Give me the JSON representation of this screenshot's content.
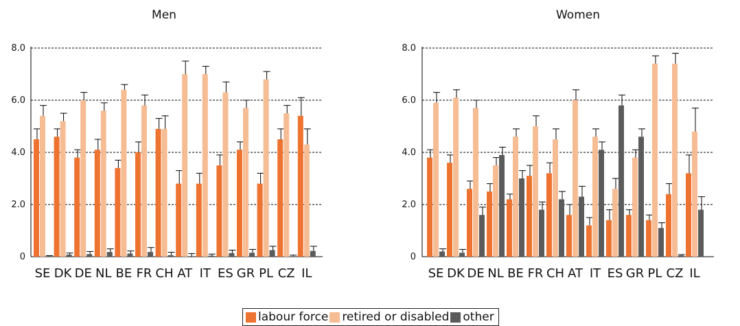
{
  "legend": [
    {
      "label": "labour force",
      "color": "#ee7330"
    },
    {
      "label": "retired or disabled",
      "color": "#f6bc93"
    },
    {
      "label": "other",
      "color": "#5b5b5b"
    }
  ],
  "chart_data": [
    {
      "type": "bar",
      "title": "Men",
      "xlabel": "",
      "ylabel": "",
      "ylim": [
        0,
        8
      ],
      "yticks": [
        "0",
        "2.0",
        "4.0",
        "6.0",
        "8.0"
      ],
      "grid": "dashed horizontal",
      "categories": [
        "SE",
        "DK",
        "DE",
        "NL",
        "BE",
        "FR",
        "CH",
        "AT",
        "IT",
        "ES",
        "GR",
        "PL",
        "CZ",
        "IL"
      ],
      "series": [
        {
          "name": "labour force",
          "color": "#ee7330",
          "values": [
            4.5,
            4.6,
            3.8,
            4.1,
            3.4,
            4.0,
            4.9,
            2.8,
            2.8,
            3.5,
            4.1,
            2.8,
            4.5,
            5.4
          ],
          "error_high": [
            4.9,
            4.9,
            4.1,
            4.5,
            3.7,
            4.4,
            5.3,
            3.3,
            3.2,
            3.9,
            4.4,
            3.2,
            4.9,
            6.1
          ]
        },
        {
          "name": "retired or disabled",
          "color": "#f6bc93",
          "values": [
            5.4,
            5.2,
            6.0,
            5.6,
            6.4,
            5.8,
            4.9,
            7.0,
            7.0,
            6.3,
            5.7,
            6.8,
            5.5,
            4.3
          ],
          "error_high": [
            5.8,
            5.5,
            6.3,
            5.9,
            6.6,
            6.2,
            5.4,
            7.5,
            7.3,
            6.7,
            6.0,
            7.1,
            5.8,
            4.9
          ]
        },
        {
          "name": "other",
          "color": "#5b5b5b",
          "values": [
            0.02,
            0.08,
            0.1,
            0.18,
            0.12,
            0.18,
            0.06,
            0.0,
            0.04,
            0.14,
            0.15,
            0.25,
            0.02,
            0.22
          ],
          "error_high": [
            0.04,
            0.14,
            0.2,
            0.3,
            0.22,
            0.35,
            0.17,
            0.12,
            0.1,
            0.25,
            0.28,
            0.4,
            0.06,
            0.4
          ]
        }
      ]
    },
    {
      "type": "bar",
      "title": "Women",
      "xlabel": "",
      "ylabel": "",
      "ylim": [
        0,
        8
      ],
      "yticks": [
        "0",
        "2.0",
        "4.0",
        "6.0",
        "8.0"
      ],
      "grid": "dashed horizontal",
      "categories": [
        "SE",
        "DK",
        "DE",
        "NL",
        "BE",
        "FR",
        "CH",
        "AT",
        "IT",
        "ES",
        "GR",
        "PL",
        "CZ",
        "IL"
      ],
      "series": [
        {
          "name": "labour force",
          "color": "#ee7330",
          "values": [
            3.8,
            3.6,
            2.6,
            2.5,
            2.2,
            3.1,
            3.2,
            1.6,
            1.2,
            1.4,
            1.6,
            1.4,
            2.4,
            3.2
          ],
          "error_high": [
            4.1,
            3.9,
            2.9,
            2.8,
            2.4,
            3.5,
            3.6,
            2.0,
            1.5,
            1.8,
            1.8,
            1.6,
            2.8,
            3.9
          ]
        },
        {
          "name": "retired or disabled",
          "color": "#f6bc93",
          "values": [
            5.9,
            6.1,
            5.7,
            3.5,
            4.6,
            5.0,
            4.5,
            6.0,
            4.6,
            2.6,
            3.8,
            7.4,
            7.4,
            4.8
          ],
          "error_high": [
            6.3,
            6.4,
            6.0,
            3.8,
            4.9,
            5.4,
            4.9,
            6.4,
            4.9,
            3.0,
            4.1,
            7.7,
            7.8,
            5.7
          ]
        },
        {
          "name": "other",
          "color": "#5b5b5b",
          "values": [
            0.2,
            0.15,
            1.6,
            3.9,
            3.0,
            1.8,
            2.2,
            2.3,
            4.1,
            5.8,
            4.6,
            1.1,
            0.05,
            1.8
          ],
          "error_high": [
            0.3,
            0.28,
            1.9,
            4.2,
            3.3,
            2.1,
            2.5,
            2.7,
            4.4,
            6.2,
            4.9,
            1.3,
            0.08,
            2.3
          ]
        }
      ]
    }
  ]
}
